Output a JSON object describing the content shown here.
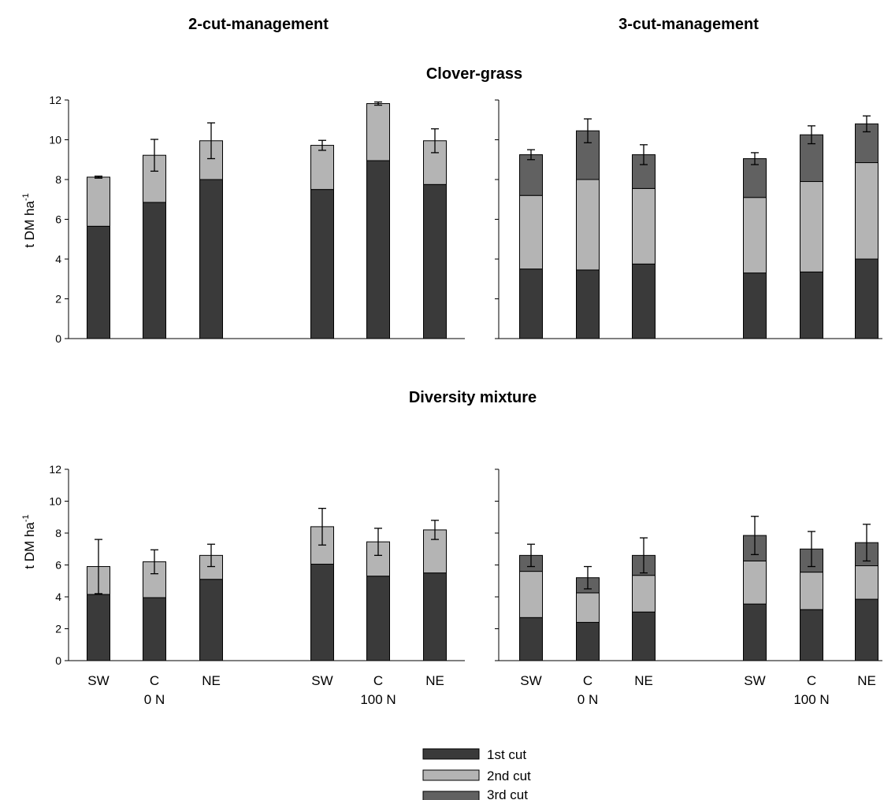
{
  "column_titles": [
    "2-cut-management",
    "3-cut-management"
  ],
  "row_titles": [
    "Clover-grass",
    "Diversity mixture"
  ],
  "y_axis_label": "t DM ha",
  "y_axis_label_superscript": "-1",
  "legend": [
    {
      "label": "1st cut",
      "color": "#3a3a3a"
    },
    {
      "label": "2nd cut",
      "color": "#b4b4b4"
    },
    {
      "label": "3rd cut",
      "color": "#616161"
    }
  ],
  "chart_data": [
    {
      "type": "bar",
      "stacked": true,
      "title": "Clover-grass",
      "management": "2-cut-management",
      "categories": [
        "SW",
        "C",
        "NE",
        "SW",
        "C",
        "NE"
      ],
      "groups": [
        {
          "label": "0 N",
          "categories": [
            "SW",
            "C",
            "NE"
          ]
        },
        {
          "label": "100 N",
          "categories": [
            "SW",
            "C",
            "NE"
          ]
        }
      ],
      "ylim": [
        0,
        12
      ],
      "yticks": [
        0,
        2,
        4,
        6,
        8,
        10,
        12
      ],
      "series": [
        {
          "name": "1st cut",
          "values": [
            5.65,
            6.85,
            8.0,
            7.5,
            8.95,
            7.75
          ]
        },
        {
          "name": "2nd cut",
          "values": [
            2.47,
            2.37,
            1.95,
            2.22,
            2.87,
            2.2
          ]
        }
      ],
      "error": [
        0.05,
        0.8,
        0.9,
        0.25,
        0.08,
        0.6
      ]
    },
    {
      "type": "bar",
      "stacked": true,
      "title": "Clover-grass",
      "management": "3-cut-management",
      "categories": [
        "SW",
        "C",
        "NE",
        "SW",
        "C",
        "NE"
      ],
      "groups": [
        {
          "label": "0 N",
          "categories": [
            "SW",
            "C",
            "NE"
          ]
        },
        {
          "label": "100 N",
          "categories": [
            "SW",
            "C",
            "NE"
          ]
        }
      ],
      "ylim": [
        0,
        12
      ],
      "yticks": [
        0,
        2,
        4,
        6,
        8,
        10,
        12
      ],
      "series": [
        {
          "name": "1st cut",
          "values": [
            3.5,
            3.45,
            3.75,
            3.3,
            3.35,
            4.0
          ]
        },
        {
          "name": "2nd cut",
          "values": [
            3.7,
            4.55,
            3.8,
            3.8,
            4.55,
            4.85
          ]
        },
        {
          "name": "3rd cut",
          "values": [
            2.05,
            2.45,
            1.7,
            1.95,
            2.35,
            1.95
          ]
        }
      ],
      "error": [
        0.25,
        0.6,
        0.5,
        0.3,
        0.45,
        0.4
      ]
    },
    {
      "type": "bar",
      "stacked": true,
      "title": "Diversity mixture",
      "management": "2-cut-management",
      "categories": [
        "SW",
        "C",
        "NE",
        "SW",
        "C",
        "NE"
      ],
      "groups": [
        {
          "label": "0 N",
          "categories": [
            "SW",
            "C",
            "NE"
          ]
        },
        {
          "label": "100 N",
          "categories": [
            "SW",
            "C",
            "NE"
          ]
        }
      ],
      "ylim": [
        0,
        12
      ],
      "yticks": [
        0,
        2,
        4,
        6,
        8,
        10,
        12
      ],
      "series": [
        {
          "name": "1st cut",
          "values": [
            4.15,
            3.95,
            5.1,
            6.05,
            5.3,
            5.5
          ]
        },
        {
          "name": "2nd cut",
          "values": [
            1.75,
            2.25,
            1.5,
            2.35,
            2.15,
            2.7
          ]
        }
      ],
      "error": [
        1.7,
        0.75,
        0.7,
        1.15,
        0.85,
        0.6
      ]
    },
    {
      "type": "bar",
      "stacked": true,
      "title": "Diversity mixture",
      "management": "3-cut-management",
      "categories": [
        "SW",
        "C",
        "NE",
        "SW",
        "C",
        "NE"
      ],
      "groups": [
        {
          "label": "0 N",
          "categories": [
            "SW",
            "C",
            "NE"
          ]
        },
        {
          "label": "100 N",
          "categories": [
            "SW",
            "C",
            "NE"
          ]
        }
      ],
      "ylim": [
        0,
        12
      ],
      "yticks": [
        0,
        2,
        4,
        6,
        8,
        10,
        12
      ],
      "series": [
        {
          "name": "1st cut",
          "values": [
            2.7,
            2.4,
            3.05,
            3.55,
            3.2,
            3.85
          ]
        },
        {
          "name": "2nd cut",
          "values": [
            2.9,
            1.85,
            2.3,
            2.7,
            2.35,
            2.1
          ]
        },
        {
          "name": "3rd cut",
          "values": [
            1.0,
            0.95,
            1.25,
            1.6,
            1.45,
            1.45
          ]
        }
      ],
      "error": [
        0.7,
        0.7,
        1.1,
        1.2,
        1.1,
        1.15
      ]
    }
  ]
}
